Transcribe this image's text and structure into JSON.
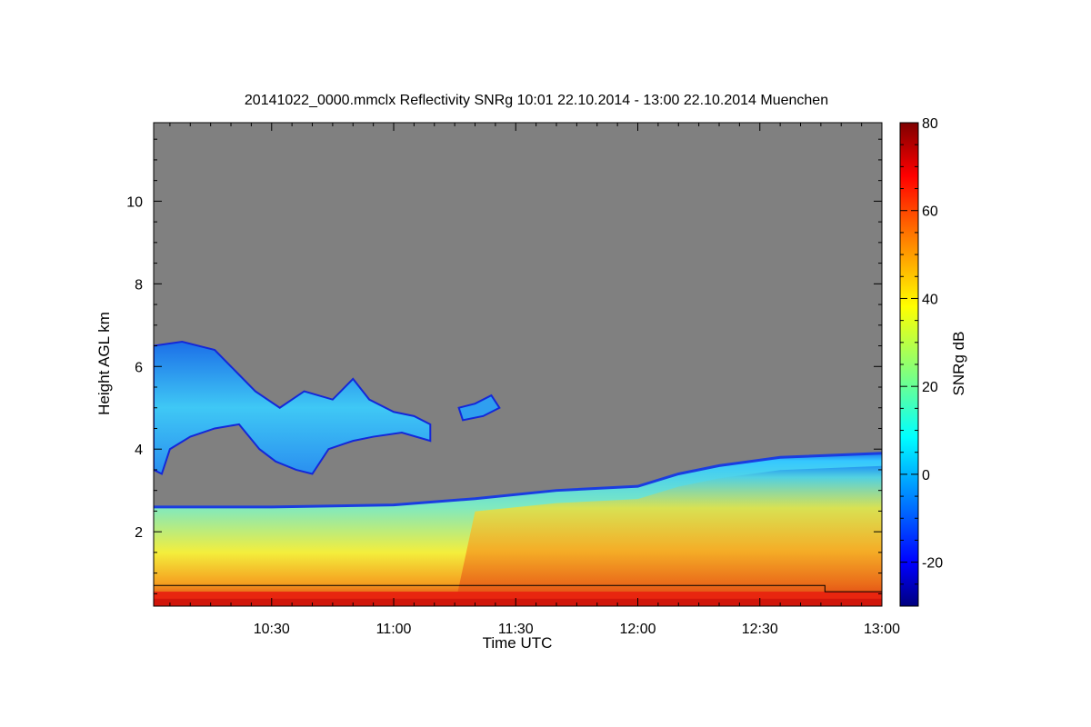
{
  "chart_data": {
    "type": "heatmap",
    "title": "20141022_0000.mmclx Reflectivity SNRg   10:01 22.10.2014 - 13:00 22.10.2014 Muenchen",
    "xlabel": "Time UTC",
    "ylabel": "Height AGL km",
    "x_range": [
      "10:01",
      "13:00"
    ],
    "ylim": [
      0.2,
      11.9
    ],
    "x_ticks": [
      "10:30",
      "11:00",
      "11:30",
      "12:00",
      "12:30",
      "13:00"
    ],
    "y_ticks": [
      2,
      4,
      6,
      8,
      10
    ],
    "colorbar": {
      "label": "SNRg dB",
      "range": [
        -30,
        80
      ],
      "ticks": [
        -20,
        0,
        20,
        40,
        60,
        80
      ],
      "colormap": [
        "#00007f",
        "#0000ff",
        "#007fff",
        "#00ffff",
        "#7fff7f",
        "#ffff00",
        "#ff7f00",
        "#ff0000",
        "#7f0000"
      ]
    },
    "background_color": "#808080",
    "features": {
      "boundary_layer_top": [
        {
          "time": "10:01",
          "height_km": 2.6
        },
        {
          "time": "10:30",
          "height_km": 2.6
        },
        {
          "time": "11:00",
          "height_km": 2.65
        },
        {
          "time": "11:20",
          "height_km": 2.8
        },
        {
          "time": "11:40",
          "height_km": 3.0
        },
        {
          "time": "12:00",
          "height_km": 3.1
        },
        {
          "time": "12:10",
          "height_km": 3.4
        },
        {
          "time": "12:20",
          "height_km": 3.6
        },
        {
          "time": "12:35",
          "height_km": 3.8
        },
        {
          "time": "13:00",
          "height_km": 3.9
        }
      ],
      "elevated_cloud_layer": {
        "time_range": [
          "10:01",
          "11:30"
        ],
        "height_range_km": [
          3.2,
          6.6
        ]
      },
      "reference_line": [
        {
          "time": "10:01",
          "height_km": 0.7
        },
        {
          "time": "12:46",
          "height_km": 0.7
        },
        {
          "time": "12:46",
          "height_km": 0.55
        },
        {
          "time": "13:00",
          "height_km": 0.55
        }
      ]
    }
  }
}
